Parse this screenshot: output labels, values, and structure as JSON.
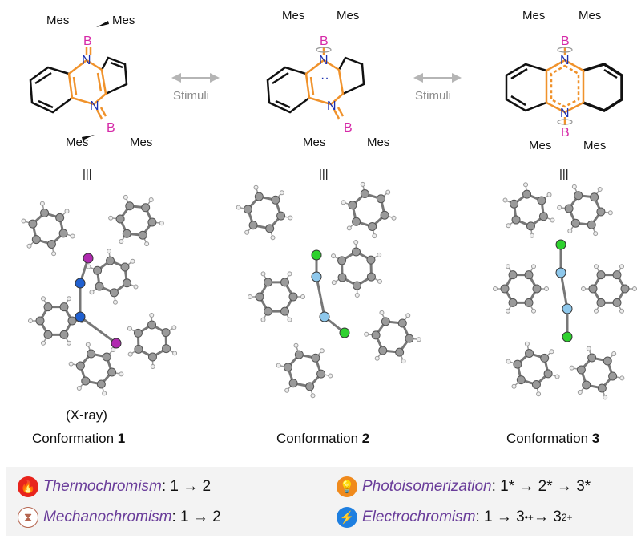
{
  "structures": [
    {
      "mes": [
        "Mes",
        "Mes",
        "Mes",
        "Mes"
      ],
      "boron": [
        "B",
        "B"
      ],
      "nitrogen": [
        "N",
        "N"
      ],
      "note": "(X-ray)",
      "caption": "Conformation ",
      "number": "1"
    },
    {
      "mes": [
        "Mes",
        "Mes",
        "Mes",
        "Mes"
      ],
      "boron": [
        "B",
        "B"
      ],
      "nitrogen": [
        "N",
        "N"
      ],
      "caption": "Conformation ",
      "number": "2"
    },
    {
      "mes": [
        "Mes",
        "Mes",
        "Mes",
        "Mes"
      ],
      "boron": [
        "B",
        "B"
      ],
      "nitrogen": [
        "N",
        "N"
      ],
      "caption": "Conformation ",
      "number": "3"
    }
  ],
  "arrows": [
    {
      "label": "Stimuli"
    },
    {
      "label": "Stimuli"
    }
  ],
  "equivalence_symbol": "|||",
  "colors": {
    "boron": "#d62aa8",
    "nitrogen": "#1a2fb0",
    "core_bond": "#f0922b",
    "legend_term": "#6a3d9a",
    "legend_bg": "#f3f3f3"
  },
  "legend": [
    {
      "icon": "flame-icon",
      "color": "#e8241c",
      "term": "Thermochromism",
      "rest": ": 1 → 2"
    },
    {
      "icon": "diamond-hourglass-icon",
      "color": "#b5654f",
      "term": "Mechanochromism",
      "rest": ": 1 → 2"
    },
    {
      "icon": "lightbulb-icon",
      "color": "#f08a1c",
      "term": "Photoisomerization",
      "rest": ": 1* → 2* → 3*"
    },
    {
      "icon": "lightning-icon",
      "color": "#1e7fe0",
      "term": "Electrochromism",
      "rest": ": 1 → 3",
      "sup1": "•+",
      "mid": "→ 3",
      "sup2": "2+"
    }
  ]
}
